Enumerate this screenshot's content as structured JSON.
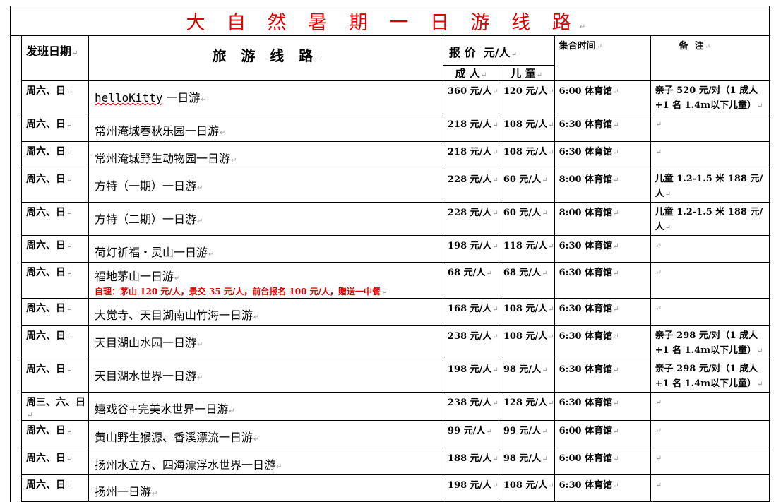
{
  "title": "大 自 然 暑 期 一 日 游 线 路",
  "headers": {
    "date": "发班日期",
    "route": "旅   游   线   路",
    "price": "报 价  元/人",
    "adult": "成 人",
    "child": "儿 童",
    "time": "集合时间",
    "note": "备  注"
  },
  "rows": [
    {
      "date": "周六、日",
      "route": "helloKitty 一日游",
      "adult": "360 元/人",
      "child": "120 元/人",
      "time": "6:00 体育馆",
      "note": "亲子 520 元/对（1 成人+1 名 1.4m以下儿童）"
    },
    {
      "date": "周六、日",
      "route": "常州淹城春秋乐园一日游",
      "adult": "218 元/人",
      "child": "108 元/人",
      "time": "6:30 体育馆",
      "note": ""
    },
    {
      "date": "周六、日",
      "route": "常州淹城野生动物园一日游",
      "adult": "218 元/人",
      "child": "108 元/人",
      "time": "6:30 体育馆",
      "note": ""
    },
    {
      "date": "周六、日",
      "route": "方特（一期）一日游",
      "adult": "228 元/人",
      "child": "60 元/人",
      "time": "8:00 体育馆",
      "note": "儿童 1.2-1.5 米 188 元/人"
    },
    {
      "date": "周六、日",
      "route": "方特（二期）一日游",
      "adult": "228 元/人",
      "child": "60 元/人",
      "time": "8:00 体育馆",
      "note": "儿童 1.2-1.5 米 188 元/人"
    },
    {
      "date": "周六、日",
      "route": "荷灯祈福・灵山一日游",
      "adult": "198 元/人",
      "child": "118 元/人",
      "time": "6:30 体育馆",
      "note": ""
    },
    {
      "date": "周六、日",
      "route": "福地茅山一日游",
      "route_note": "自理：茅山 120 元/人，景交 35 元/人，前台报名 100 元/人，赠送一中餐",
      "adult": "68 元/人",
      "child": "68 元/人",
      "time": "6:30 体育馆",
      "note": ""
    },
    {
      "date": "周六、日",
      "route": "大觉寺、天目湖南山竹海一日游",
      "adult": "168 元/人",
      "child": "108 元/人",
      "time": "6:30 体育馆",
      "note": ""
    },
    {
      "date": "周六、日",
      "route": "天目湖山水园一日游",
      "adult": "238 元/人",
      "child": "108 元/人",
      "time": "6:30 体育馆",
      "note": "亲子 298 元/对（1 成人+1 名 1.4m以下儿童）"
    },
    {
      "date": "周六、日",
      "route": "天目湖水世界一日游",
      "adult": "198 元/人",
      "child": "98 元/人",
      "time": "6:30 体育馆",
      "note": "亲子 298 元/对（1 成人+1 名 1.4m以下儿童）"
    },
    {
      "date": "周三、六、日",
      "route": "嬉戏谷+完美水世界一日游",
      "adult": "238 元/人",
      "child": "128 元/人",
      "time": "6:30 体育馆",
      "note": ""
    },
    {
      "date": "周六、日",
      "route": "黄山野生猴源、香溪漂流一日游",
      "adult": "99 元/人",
      "child": "99 元/人",
      "time": "6:00 体育馆",
      "note": ""
    },
    {
      "date": "周六、日",
      "route": "扬州水立方、四海漂浮水世界一日游",
      "adult": "188 元/人",
      "child": "98 元/人",
      "time": "6:00 体育馆",
      "note": ""
    },
    {
      "date": "周六、日",
      "route": "扬州一日游",
      "adult": "198 元/人",
      "child": "108 元/人",
      "time": "6:30 体育馆",
      "note": ""
    }
  ],
  "colors": {
    "title": "#e00000",
    "route_note": "#e00000",
    "border": "#000000"
  }
}
